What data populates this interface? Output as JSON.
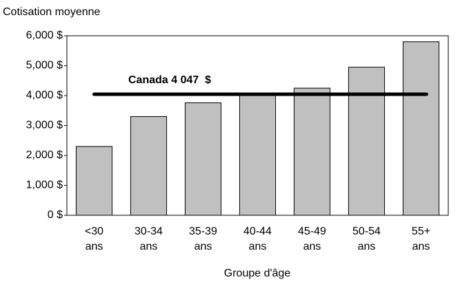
{
  "chart_data": {
    "type": "bar",
    "ylabel": "Cotisation moyenne",
    "xlabel": "Groupe d'âge",
    "categories": [
      [
        "<30",
        "ans"
      ],
      [
        "30-34",
        "ans"
      ],
      [
        "35-39",
        "ans"
      ],
      [
        "40-44",
        "ans"
      ],
      [
        "45-49",
        "ans"
      ],
      [
        "50-54",
        "ans"
      ],
      [
        "55+",
        "ans"
      ]
    ],
    "values": [
      2300,
      3300,
      3760,
      4080,
      4250,
      4950,
      5800
    ],
    "color": "#c0c0c0",
    "ylim": [
      0,
      6000
    ],
    "yticks": [
      {
        "value": 0,
        "label": "0 $"
      },
      {
        "value": 1000,
        "label": "1,000 $"
      },
      {
        "value": 2000,
        "label": "2,000 $"
      },
      {
        "value": 3000,
        "label": "3,000 $"
      },
      {
        "value": 4000,
        "label": "4,000 $"
      },
      {
        "value": 5000,
        "label": "5,000 $"
      },
      {
        "value": 6000,
        "label": "6,000 $"
      }
    ],
    "reference_line": {
      "label": "Canada 4 047  $",
      "value": 4047,
      "color": "#000000"
    }
  }
}
